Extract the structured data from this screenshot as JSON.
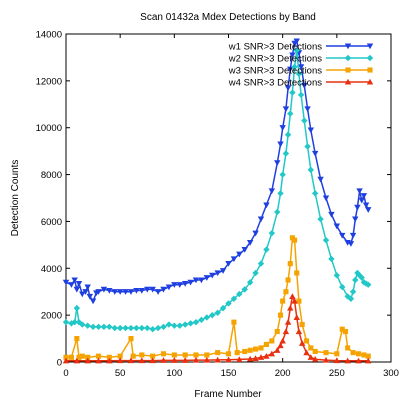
{
  "chart_data": {
    "type": "line",
    "title": "Scan 01432a Mdex Detections by Band",
    "xlabel": "Frame Number",
    "ylabel": "Detection Counts",
    "xlim": [
      0,
      300
    ],
    "ylim": [
      0,
      14000
    ],
    "x_ticks": [
      "0",
      "50",
      "100",
      "150",
      "200",
      "250",
      "300"
    ],
    "y_ticks": [
      "0",
      "2000",
      "4000",
      "6000",
      "8000",
      "10000",
      "12000",
      "14000"
    ],
    "grid": false,
    "legend_position": "top-right",
    "series": [
      {
        "name": "w1 SNR>3 Detections",
        "color": "#1f3fe0",
        "marker": "triangle-down",
        "points": [
          [
            0,
            3400
          ],
          [
            5,
            3300
          ],
          [
            8,
            3500
          ],
          [
            10,
            3100
          ],
          [
            12,
            3350
          ],
          [
            15,
            2900
          ],
          [
            18,
            3000
          ],
          [
            20,
            3200
          ],
          [
            22,
            2800
          ],
          [
            25,
            2600
          ],
          [
            28,
            2950
          ],
          [
            30,
            3000
          ],
          [
            35,
            3100
          ],
          [
            40,
            3050
          ],
          [
            45,
            3000
          ],
          [
            50,
            3000
          ],
          [
            55,
            3000
          ],
          [
            60,
            3000
          ],
          [
            65,
            3050
          ],
          [
            70,
            3050
          ],
          [
            75,
            3100
          ],
          [
            80,
            3100
          ],
          [
            85,
            3000
          ],
          [
            90,
            3100
          ],
          [
            95,
            3200
          ],
          [
            100,
            3300
          ],
          [
            105,
            3300
          ],
          [
            110,
            3350
          ],
          [
            115,
            3400
          ],
          [
            120,
            3500
          ],
          [
            125,
            3500
          ],
          [
            130,
            3600
          ],
          [
            135,
            3700
          ],
          [
            140,
            3800
          ],
          [
            145,
            3900
          ],
          [
            150,
            4200
          ],
          [
            155,
            4400
          ],
          [
            160,
            4600
          ],
          [
            165,
            4800
          ],
          [
            170,
            5100
          ],
          [
            175,
            5500
          ],
          [
            180,
            6100
          ],
          [
            185,
            6700
          ],
          [
            190,
            7300
          ],
          [
            195,
            8500
          ],
          [
            198,
            9300
          ],
          [
            200,
            10000
          ],
          [
            203,
            10800
          ],
          [
            205,
            11700
          ],
          [
            207,
            12500
          ],
          [
            209,
            13100
          ],
          [
            211,
            13600
          ],
          [
            213,
            13700
          ],
          [
            215,
            13200
          ],
          [
            217,
            12600
          ],
          [
            220,
            11800
          ],
          [
            223,
            10800
          ],
          [
            226,
            9900
          ],
          [
            230,
            8900
          ],
          [
            235,
            7800
          ],
          [
            240,
            7000
          ],
          [
            245,
            6300
          ],
          [
            250,
            5800
          ],
          [
            255,
            5400
          ],
          [
            260,
            5100
          ],
          [
            263,
            5050
          ],
          [
            265,
            5400
          ],
          [
            267,
            6100
          ],
          [
            269,
            6600
          ],
          [
            271,
            7300
          ],
          [
            273,
            6900
          ],
          [
            275,
            7100
          ],
          [
            277,
            6700
          ],
          [
            279,
            6500
          ]
        ]
      },
      {
        "name": "w2 SNR>3 Detections",
        "color": "#22c8c8",
        "marker": "diamond",
        "points": [
          [
            0,
            1700
          ],
          [
            5,
            1650
          ],
          [
            8,
            1700
          ],
          [
            10,
            2300
          ],
          [
            12,
            1700
          ],
          [
            15,
            1600
          ],
          [
            20,
            1550
          ],
          [
            25,
            1500
          ],
          [
            30,
            1500
          ],
          [
            35,
            1500
          ],
          [
            40,
            1500
          ],
          [
            45,
            1450
          ],
          [
            50,
            1450
          ],
          [
            55,
            1450
          ],
          [
            60,
            1450
          ],
          [
            65,
            1450
          ],
          [
            70,
            1450
          ],
          [
            75,
            1450
          ],
          [
            80,
            1400
          ],
          [
            85,
            1450
          ],
          [
            90,
            1500
          ],
          [
            95,
            1600
          ],
          [
            100,
            1550
          ],
          [
            105,
            1550
          ],
          [
            110,
            1600
          ],
          [
            115,
            1650
          ],
          [
            120,
            1700
          ],
          [
            125,
            1800
          ],
          [
            130,
            1900
          ],
          [
            135,
            2000
          ],
          [
            140,
            2100
          ],
          [
            145,
            2300
          ],
          [
            150,
            2500
          ],
          [
            155,
            2700
          ],
          [
            160,
            2900
          ],
          [
            165,
            3100
          ],
          [
            170,
            3400
          ],
          [
            175,
            3800
          ],
          [
            180,
            4200
          ],
          [
            185,
            4800
          ],
          [
            190,
            5500
          ],
          [
            195,
            6400
          ],
          [
            198,
            7200
          ],
          [
            200,
            8000
          ],
          [
            203,
            8900
          ],
          [
            205,
            9700
          ],
          [
            207,
            10600
          ],
          [
            209,
            11500
          ],
          [
            211,
            12600
          ],
          [
            213,
            13300
          ],
          [
            215,
            12300
          ],
          [
            217,
            11400
          ],
          [
            220,
            10300
          ],
          [
            223,
            9200
          ],
          [
            226,
            8200
          ],
          [
            230,
            7200
          ],
          [
            235,
            6100
          ],
          [
            240,
            5200
          ],
          [
            245,
            4400
          ],
          [
            250,
            3700
          ],
          [
            255,
            3200
          ],
          [
            260,
            2800
          ],
          [
            263,
            2700
          ],
          [
            265,
            3000
          ],
          [
            267,
            3500
          ],
          [
            269,
            3800
          ],
          [
            271,
            3700
          ],
          [
            273,
            3600
          ],
          [
            275,
            3400
          ],
          [
            277,
            3350
          ],
          [
            279,
            3300
          ]
        ]
      },
      {
        "name": "w3 SNR>3 Detections",
        "color": "#f5a300",
        "marker": "square",
        "points": [
          [
            0,
            200
          ],
          [
            5,
            200
          ],
          [
            10,
            1000
          ],
          [
            12,
            200
          ],
          [
            15,
            250
          ],
          [
            20,
            200
          ],
          [
            30,
            250
          ],
          [
            40,
            200
          ],
          [
            50,
            250
          ],
          [
            60,
            1000
          ],
          [
            62,
            250
          ],
          [
            70,
            300
          ],
          [
            80,
            250
          ],
          [
            90,
            350
          ],
          [
            100,
            300
          ],
          [
            110,
            300
          ],
          [
            120,
            300
          ],
          [
            130,
            300
          ],
          [
            140,
            400
          ],
          [
            150,
            350
          ],
          [
            155,
            1700
          ],
          [
            158,
            400
          ],
          [
            165,
            450
          ],
          [
            170,
            500
          ],
          [
            175,
            550
          ],
          [
            180,
            600
          ],
          [
            185,
            750
          ],
          [
            190,
            900
          ],
          [
            195,
            1300
          ],
          [
            198,
            2000
          ],
          [
            200,
            2600
          ],
          [
            203,
            3000
          ],
          [
            205,
            3500
          ],
          [
            207,
            4200
          ],
          [
            209,
            5300
          ],
          [
            211,
            5200
          ],
          [
            213,
            3800
          ],
          [
            215,
            2600
          ],
          [
            218,
            1600
          ],
          [
            222,
            900
          ],
          [
            226,
            600
          ],
          [
            230,
            450
          ],
          [
            240,
            400
          ],
          [
            250,
            350
          ],
          [
            255,
            1400
          ],
          [
            258,
            1300
          ],
          [
            260,
            600
          ],
          [
            265,
            400
          ],
          [
            270,
            350
          ],
          [
            275,
            300
          ],
          [
            279,
            250
          ]
        ]
      },
      {
        "name": "w4 SNR>3 Detections",
        "color": "#e83010",
        "marker": "triangle-up",
        "points": [
          [
            0,
            50
          ],
          [
            10,
            50
          ],
          [
            20,
            50
          ],
          [
            30,
            50
          ],
          [
            40,
            50
          ],
          [
            50,
            60
          ],
          [
            60,
            60
          ],
          [
            70,
            60
          ],
          [
            80,
            60
          ],
          [
            90,
            70
          ],
          [
            100,
            70
          ],
          [
            110,
            70
          ],
          [
            120,
            80
          ],
          [
            130,
            80
          ],
          [
            140,
            90
          ],
          [
            150,
            100
          ],
          [
            160,
            110
          ],
          [
            170,
            130
          ],
          [
            175,
            150
          ],
          [
            180,
            200
          ],
          [
            185,
            250
          ],
          [
            190,
            350
          ],
          [
            195,
            500
          ],
          [
            198,
            700
          ],
          [
            200,
            900
          ],
          [
            203,
            1300
          ],
          [
            205,
            1700
          ],
          [
            207,
            2300
          ],
          [
            209,
            2800
          ],
          [
            211,
            2600
          ],
          [
            213,
            1900
          ],
          [
            215,
            1300
          ],
          [
            218,
            800
          ],
          [
            222,
            400
          ],
          [
            226,
            200
          ],
          [
            230,
            120
          ],
          [
            240,
            80
          ],
          [
            250,
            60
          ],
          [
            260,
            50
          ],
          [
            270,
            50
          ],
          [
            279,
            50
          ]
        ]
      }
    ]
  }
}
